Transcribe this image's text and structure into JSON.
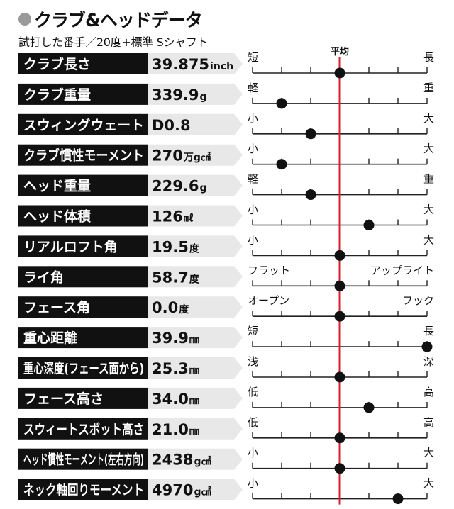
{
  "header": {
    "title": "クラブ&ヘッドデータ",
    "subtitle": "試打した番手／20度+標準 Sシャフト"
  },
  "colors": {
    "label_bg": "#111111",
    "value_bg": "#e8e8e8",
    "avg_line": "#d8202f",
    "dot": "#111111",
    "title_dot": "#9a9a9a"
  },
  "chart_data": {
    "type": "scatter",
    "scale_positions": 7,
    "average_label": "平均",
    "average_position": 3,
    "rows": [
      {
        "label": "クラブ長さ",
        "value": "39.875",
        "unit": "inch",
        "left": "短",
        "right": "長",
        "position": 3
      },
      {
        "label": "クラブ重量",
        "value": "339.9",
        "unit": "g",
        "left": "軽",
        "right": "重",
        "position": 1
      },
      {
        "label": "スウィングウェート",
        "value": "D0.8",
        "unit": "",
        "left": "小",
        "right": "大",
        "position": 2
      },
      {
        "label": "クラブ慣性モーメント",
        "value": "270",
        "unit": "万g㎠",
        "left": "小",
        "right": "大",
        "position": 1
      },
      {
        "label": "ヘッド重量",
        "value": "229.6",
        "unit": "g",
        "left": "軽",
        "right": "重",
        "position": 2
      },
      {
        "label": "ヘッド体積",
        "value": "126",
        "unit": "㎖",
        "left": "小",
        "right": "大",
        "position": 4
      },
      {
        "label": "リアルロフト角",
        "value": "19.5",
        "unit": "度",
        "left": "小",
        "right": "大",
        "position": 3
      },
      {
        "label": "ライ角",
        "value": "58.7",
        "unit": "度",
        "left": "フラット",
        "right": "アップライト",
        "position": 3
      },
      {
        "label": "フェース角",
        "value": "0.0",
        "unit": "度",
        "left": "オープン",
        "right": "フック",
        "position": 3
      },
      {
        "label": "重心距離",
        "value": "39.9",
        "unit": "㎜",
        "left": "短",
        "right": "長",
        "position": 6
      },
      {
        "label": "重心深度(フェース面から)",
        "value": "25.3",
        "unit": "㎜",
        "left": "浅",
        "right": "深",
        "position": 3
      },
      {
        "label": "フェース高さ",
        "value": "34.0",
        "unit": "㎜",
        "left": "低",
        "right": "高",
        "position": 4
      },
      {
        "label": "スウィートスポット高さ",
        "value": "21.0",
        "unit": "㎜",
        "left": "低",
        "right": "高",
        "position": 3
      },
      {
        "label": "ヘッド慣性モーメント(左右方向)",
        "value": "2438",
        "unit": "g㎠",
        "left": "小",
        "right": "大",
        "position": 3
      },
      {
        "label": "ネック軸回りモーメント",
        "value": "4970",
        "unit": "g㎠",
        "left": "小",
        "right": "大",
        "position": 5
      }
    ]
  }
}
